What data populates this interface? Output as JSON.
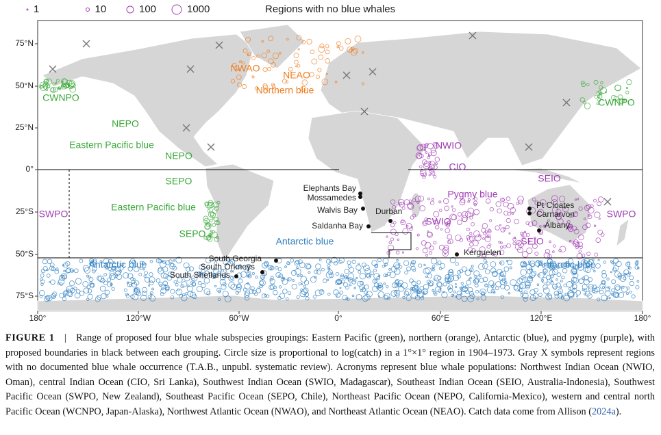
{
  "legend": {
    "sizes": [
      "1",
      "10",
      "100",
      "1000"
    ],
    "no_whales": "Regions with no blue whales"
  },
  "axes": {
    "longitude": [
      "180°",
      "120°W",
      "60°W",
      "0°",
      "60°E",
      "120°E",
      "180°"
    ],
    "latitude": [
      "75°N",
      "50°N",
      "25°N",
      "0°",
      "25°S",
      "50°S",
      "75°S"
    ]
  },
  "regions": [
    "NWAO",
    "NEAO",
    "Northern blue",
    "CWNPO",
    "NEPO",
    "Eastern Pacific blue",
    "NEPO",
    "SEPO",
    "Eastern Pacific blue",
    "SEPO",
    "SWPO",
    "Antarctic blue",
    "Antarctic blue",
    "Antarctic blue",
    "NWIO",
    "CIO",
    "Pygmy blue",
    "SWIO",
    "SEIO",
    "SEIO",
    "SWPO",
    "CWNPO"
  ],
  "sites": [
    "Elephants Bay",
    "Mossamedes",
    "Walvis Bay",
    "Saldanha Bay",
    "Durban",
    "South Georgia",
    "South Orkneys",
    "South Shetlands",
    "Kerguelen",
    "Pt Cloates",
    "Carnarvon",
    "Albany"
  ],
  "caption": {
    "label": "FIGURE 1",
    "separator": "|",
    "text": "Range of proposed four blue whale subspecies groupings: Eastern Pacific (green), northern (orange), Antarctic (blue), and pygmy (purple), with proposed boundaries in black between each grouping. Circle size is proportional to log(catch) in a 1°×1° region in 1904–1973. Gray X symbols represent regions with no documented blue whale occurrence (T.A.B., unpubl. systematic review). Acronyms represent blue whale populations: Northwest Indian Ocean (NWIO, Oman), central Indian Ocean (CIO, Sri Lanka), Southwest Indian Ocean (SWIO, Madagascar), Southeast Indian Ocean (SEIO, Australia-Indonesia), Southwest Pacific Ocean (SWPO, New Zealand), Southeast Pacific Ocean (SEPO, Chile), Northeast Pacific Ocean (NEPO, California-Mexico), western and central north Pacific Ocean (WCNPO, Japan-Alaska), Northwest Atlantic Ocean (NWAO), and Northeast Atlantic Ocean (NEAO). Catch data come from Allison (",
    "link": "2024a",
    "tail": ")."
  }
}
